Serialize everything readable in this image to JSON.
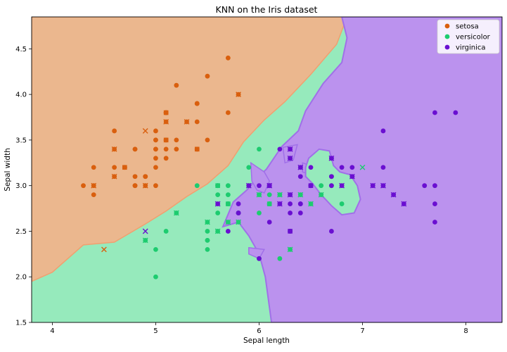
{
  "chart_data": {
    "type": "scatter",
    "title": "KNN on the Iris dataset",
    "xlabel": "Sepal length",
    "ylabel": "Sepal width",
    "xlim": [
      3.8,
      8.35
    ],
    "ylim": [
      1.5,
      4.85
    ],
    "x_ticks": [
      "4",
      "5",
      "6",
      "7",
      "8"
    ],
    "y_ticks": [
      "1.5",
      "2.0",
      "2.5",
      "3.0",
      "3.5",
      "4.0",
      "4.5"
    ],
    "legend_position": "top-right",
    "grid": false,
    "classes": [
      {
        "name": "setosa",
        "color": "#d95f0e",
        "region_color": "#ebb78e"
      },
      {
        "name": "versicolor",
        "color": "#1dcc6f",
        "region_color": "#96eabc"
      },
      {
        "name": "virginica",
        "color": "#6a0fd1",
        "region_color": "#bb92ee"
      }
    ],
    "markers": {
      "train": "circle",
      "test_correct": "x",
      "test_misclassified": "square"
    },
    "boundaries": {
      "setosa": [
        [
          3.8,
          4.85
        ],
        [
          3.8,
          1.95
        ],
        [
          4.0,
          2.05
        ],
        [
          4.3,
          2.35
        ],
        [
          4.6,
          2.38
        ],
        [
          4.9,
          2.58
        ],
        [
          5.1,
          2.72
        ],
        [
          5.3,
          2.88
        ],
        [
          5.5,
          3.02
        ],
        [
          5.7,
          3.22
        ],
        [
          5.85,
          3.48
        ],
        [
          6.05,
          3.72
        ],
        [
          6.25,
          3.92
        ],
        [
          6.5,
          4.22
        ],
        [
          6.75,
          4.55
        ],
        [
          6.85,
          4.85
        ]
      ],
      "virginica": [
        [
          6.8,
          4.85
        ],
        [
          6.85,
          4.62
        ],
        [
          6.8,
          4.35
        ],
        [
          6.62,
          4.12
        ],
        [
          6.45,
          3.82
        ],
        [
          6.38,
          3.6
        ],
        [
          6.22,
          3.43
        ],
        [
          6.07,
          3.18
        ],
        [
          5.95,
          3.05
        ],
        [
          5.92,
          3.0
        ],
        [
          5.88,
          2.95
        ],
        [
          5.75,
          2.82
        ],
        [
          5.65,
          2.55
        ],
        [
          5.8,
          2.6
        ],
        [
          5.9,
          2.45
        ],
        [
          6.0,
          2.25
        ],
        [
          6.06,
          2.0
        ],
        [
          6.12,
          1.5
        ],
        [
          8.35,
          1.5
        ],
        [
          8.35,
          4.85
        ]
      ],
      "virginica_pockets": [
        [
          [
            5.92,
            3.25
          ],
          [
            6.05,
            3.15
          ],
          [
            6.1,
            3.05
          ],
          [
            6.05,
            2.92
          ],
          [
            5.98,
            2.95
          ],
          [
            5.93,
            3.05
          ]
        ],
        [
          [
            6.23,
            3.42
          ],
          [
            6.37,
            3.45
          ],
          [
            6.33,
            3.28
          ],
          [
            6.25,
            3.25
          ]
        ],
        [
          [
            6.42,
            3.25
          ],
          [
            6.55,
            3.2
          ],
          [
            6.55,
            3.1
          ],
          [
            6.42,
            3.15
          ]
        ],
        [
          [
            5.9,
            2.32
          ],
          [
            6.05,
            2.3
          ],
          [
            6.0,
            2.2
          ],
          [
            5.9,
            2.25
          ]
        ]
      ],
      "versicolor_island": [
        [
          6.48,
          3.3
        ],
        [
          6.58,
          3.4
        ],
        [
          6.68,
          3.38
        ],
        [
          6.72,
          3.22
        ],
        [
          6.78,
          3.15
        ],
        [
          6.88,
          3.12
        ],
        [
          6.95,
          3.0
        ],
        [
          6.98,
          2.85
        ],
        [
          6.92,
          2.7
        ],
        [
          6.8,
          2.68
        ],
        [
          6.7,
          2.78
        ],
        [
          6.6,
          2.9
        ],
        [
          6.52,
          3.02
        ],
        [
          6.45,
          3.1
        ],
        [
          6.45,
          3.2
        ]
      ]
    },
    "series": [
      {
        "name": "setosa",
        "marker": "circle",
        "points": [
          [
            5.1,
            3.5
          ],
          [
            4.9,
            3.0
          ],
          [
            4.7,
            3.2
          ],
          [
            4.6,
            3.1
          ],
          [
            5.0,
            3.6
          ],
          [
            5.4,
            3.9
          ],
          [
            4.6,
            3.4
          ],
          [
            5.0,
            3.4
          ],
          [
            4.4,
            2.9
          ],
          [
            4.9,
            3.1
          ],
          [
            5.4,
            3.7
          ],
          [
            4.8,
            3.4
          ],
          [
            4.8,
            3.0
          ],
          [
            4.3,
            3.0
          ],
          [
            5.8,
            4.0
          ],
          [
            5.7,
            4.4
          ],
          [
            5.4,
            3.9
          ],
          [
            5.1,
            3.5
          ],
          [
            5.7,
            3.8
          ],
          [
            5.1,
            3.8
          ],
          [
            5.4,
            3.4
          ],
          [
            5.1,
            3.7
          ],
          [
            4.6,
            3.6
          ],
          [
            5.1,
            3.3
          ],
          [
            4.8,
            3.4
          ],
          [
            5.0,
            3.0
          ],
          [
            5.0,
            3.4
          ],
          [
            5.2,
            3.5
          ],
          [
            5.2,
            3.4
          ],
          [
            4.7,
            3.2
          ],
          [
            4.8,
            3.1
          ],
          [
            5.4,
            3.4
          ],
          [
            5.2,
            4.1
          ],
          [
            5.5,
            4.2
          ],
          [
            4.9,
            3.1
          ],
          [
            5.0,
            3.2
          ],
          [
            5.5,
            3.5
          ],
          [
            4.4,
            3.0
          ],
          [
            5.1,
            3.4
          ],
          [
            5.0,
            3.5
          ],
          [
            4.4,
            3.2
          ],
          [
            5.0,
            3.5
          ],
          [
            5.1,
            3.8
          ],
          [
            4.8,
            3.0
          ],
          [
            5.1,
            3.8
          ],
          [
            4.6,
            3.2
          ],
          [
            5.3,
            3.7
          ],
          [
            5.0,
            3.3
          ]
        ]
      },
      {
        "name": "versicolor",
        "marker": "circle",
        "points": [
          [
            6.4,
            3.2
          ],
          [
            5.5,
            2.3
          ],
          [
            6.5,
            2.8
          ],
          [
            5.7,
            2.8
          ],
          [
            6.3,
            3.3
          ],
          [
            4.9,
            2.4
          ],
          [
            6.6,
            2.9
          ],
          [
            5.2,
            2.7
          ],
          [
            5.0,
            2.0
          ],
          [
            5.9,
            3.0
          ],
          [
            6.0,
            2.2
          ],
          [
            6.1,
            2.9
          ],
          [
            5.6,
            2.9
          ],
          [
            6.7,
            3.1
          ],
          [
            5.6,
            3.0
          ],
          [
            5.8,
            2.7
          ],
          [
            6.2,
            2.2
          ],
          [
            5.6,
            2.5
          ],
          [
            5.9,
            3.2
          ],
          [
            6.1,
            2.8
          ],
          [
            6.3,
            2.5
          ],
          [
            6.1,
            2.8
          ],
          [
            6.4,
            2.9
          ],
          [
            6.6,
            3.0
          ],
          [
            6.8,
            2.8
          ],
          [
            6.7,
            3.0
          ],
          [
            6.0,
            2.9
          ],
          [
            5.7,
            2.6
          ],
          [
            5.5,
            2.4
          ],
          [
            5.5,
            2.4
          ],
          [
            5.8,
            2.7
          ],
          [
            6.0,
            2.7
          ],
          [
            5.4,
            3.0
          ],
          [
            6.0,
            3.4
          ],
          [
            6.7,
            3.1
          ],
          [
            6.3,
            2.3
          ],
          [
            5.6,
            3.0
          ],
          [
            5.5,
            2.5
          ],
          [
            5.5,
            2.6
          ],
          [
            6.1,
            3.0
          ],
          [
            5.8,
            2.6
          ],
          [
            5.0,
            2.3
          ],
          [
            5.6,
            2.7
          ],
          [
            5.7,
            3.0
          ],
          [
            5.7,
            2.9
          ],
          [
            6.2,
            2.9
          ],
          [
            5.1,
            2.5
          ],
          [
            5.7,
            2.8
          ]
        ]
      },
      {
        "name": "virginica",
        "marker": "circle",
        "points": [
          [
            6.3,
            3.3
          ],
          [
            5.8,
            2.7
          ],
          [
            7.1,
            3.0
          ],
          [
            6.3,
            2.9
          ],
          [
            6.5,
            3.0
          ],
          [
            7.6,
            3.0
          ],
          [
            7.3,
            2.9
          ],
          [
            6.7,
            2.5
          ],
          [
            7.2,
            3.6
          ],
          [
            6.5,
            3.2
          ],
          [
            6.4,
            2.7
          ],
          [
            6.8,
            3.0
          ],
          [
            5.7,
            2.5
          ],
          [
            5.8,
            2.8
          ],
          [
            6.4,
            3.2
          ],
          [
            6.5,
            3.0
          ],
          [
            7.7,
            3.8
          ],
          [
            7.7,
            2.6
          ],
          [
            6.0,
            2.2
          ],
          [
            6.9,
            3.2
          ],
          [
            5.6,
            2.8
          ],
          [
            7.7,
            2.8
          ],
          [
            6.3,
            2.7
          ],
          [
            6.7,
            3.3
          ],
          [
            7.2,
            3.2
          ],
          [
            6.2,
            2.8
          ],
          [
            6.1,
            3.0
          ],
          [
            6.4,
            2.8
          ],
          [
            7.2,
            3.0
          ],
          [
            7.4,
            2.8
          ],
          [
            7.9,
            3.8
          ],
          [
            6.4,
            2.8
          ],
          [
            6.3,
            2.8
          ],
          [
            6.1,
            2.6
          ],
          [
            7.7,
            3.0
          ],
          [
            6.3,
            3.4
          ],
          [
            6.4,
            3.1
          ],
          [
            6.0,
            3.0
          ],
          [
            6.9,
            3.1
          ],
          [
            6.7,
            3.1
          ],
          [
            6.9,
            3.1
          ],
          [
            5.8,
            2.7
          ],
          [
            6.8,
            3.2
          ],
          [
            6.7,
            3.3
          ],
          [
            6.7,
            3.0
          ],
          [
            6.3,
            2.5
          ],
          [
            6.5,
            3.0
          ],
          [
            6.2,
            3.4
          ],
          [
            5.9,
            3.0
          ]
        ]
      },
      {
        "name": "setosa",
        "marker": "x",
        "points": [
          [
            4.5,
            2.3
          ],
          [
            4.6,
            3.4
          ],
          [
            4.9,
            3.6
          ],
          [
            5.1,
            3.7
          ],
          [
            5.3,
            3.7
          ],
          [
            4.4,
            3.0
          ],
          [
            5.8,
            4.0
          ],
          [
            4.9,
            3.0
          ],
          [
            4.6,
            3.1
          ]
        ]
      },
      {
        "name": "versicolor",
        "marker": "x",
        "points": [
          [
            5.2,
            2.7
          ],
          [
            5.5,
            2.6
          ],
          [
            5.6,
            2.5
          ],
          [
            6.3,
            2.3
          ],
          [
            6.6,
            2.9
          ],
          [
            6.5,
            2.8
          ],
          [
            5.7,
            2.6
          ],
          [
            6.0,
            2.9
          ],
          [
            6.4,
            2.9
          ],
          [
            6.2,
            2.9
          ],
          [
            7.0,
            3.2
          ],
          [
            5.8,
            2.6
          ],
          [
            4.9,
            2.4
          ]
        ]
      },
      {
        "name": "virginica",
        "marker": "x",
        "points": [
          [
            4.9,
            2.5
          ],
          [
            5.6,
            2.8
          ],
          [
            5.9,
            3.0
          ],
          [
            6.1,
            3.0
          ],
          [
            6.2,
            2.8
          ],
          [
            6.3,
            2.9
          ],
          [
            6.3,
            3.3
          ],
          [
            6.4,
            3.2
          ],
          [
            6.3,
            3.4
          ],
          [
            6.7,
            3.3
          ],
          [
            6.8,
            3.0
          ],
          [
            7.1,
            3.0
          ],
          [
            7.2,
            3.0
          ],
          [
            7.3,
            2.9
          ],
          [
            7.4,
            2.8
          ],
          [
            6.9,
            3.1
          ]
        ]
      },
      {
        "name": "setosa",
        "marker": "square",
        "points": [
          [
            5.1,
            3.8
          ],
          [
            5.1,
            3.5
          ],
          [
            5.4,
            3.4
          ],
          [
            4.7,
            3.2
          ]
        ]
      },
      {
        "name": "versicolor",
        "marker": "square",
        "points": [
          [
            5.6,
            3.0
          ],
          [
            5.7,
            2.8
          ],
          [
            6.1,
            2.8
          ]
        ]
      },
      {
        "name": "virginica",
        "marker": "square",
        "points": [
          [
            6.5,
            3.0
          ],
          [
            6.1,
            3.0
          ],
          [
            6.3,
            2.5
          ]
        ]
      }
    ]
  }
}
